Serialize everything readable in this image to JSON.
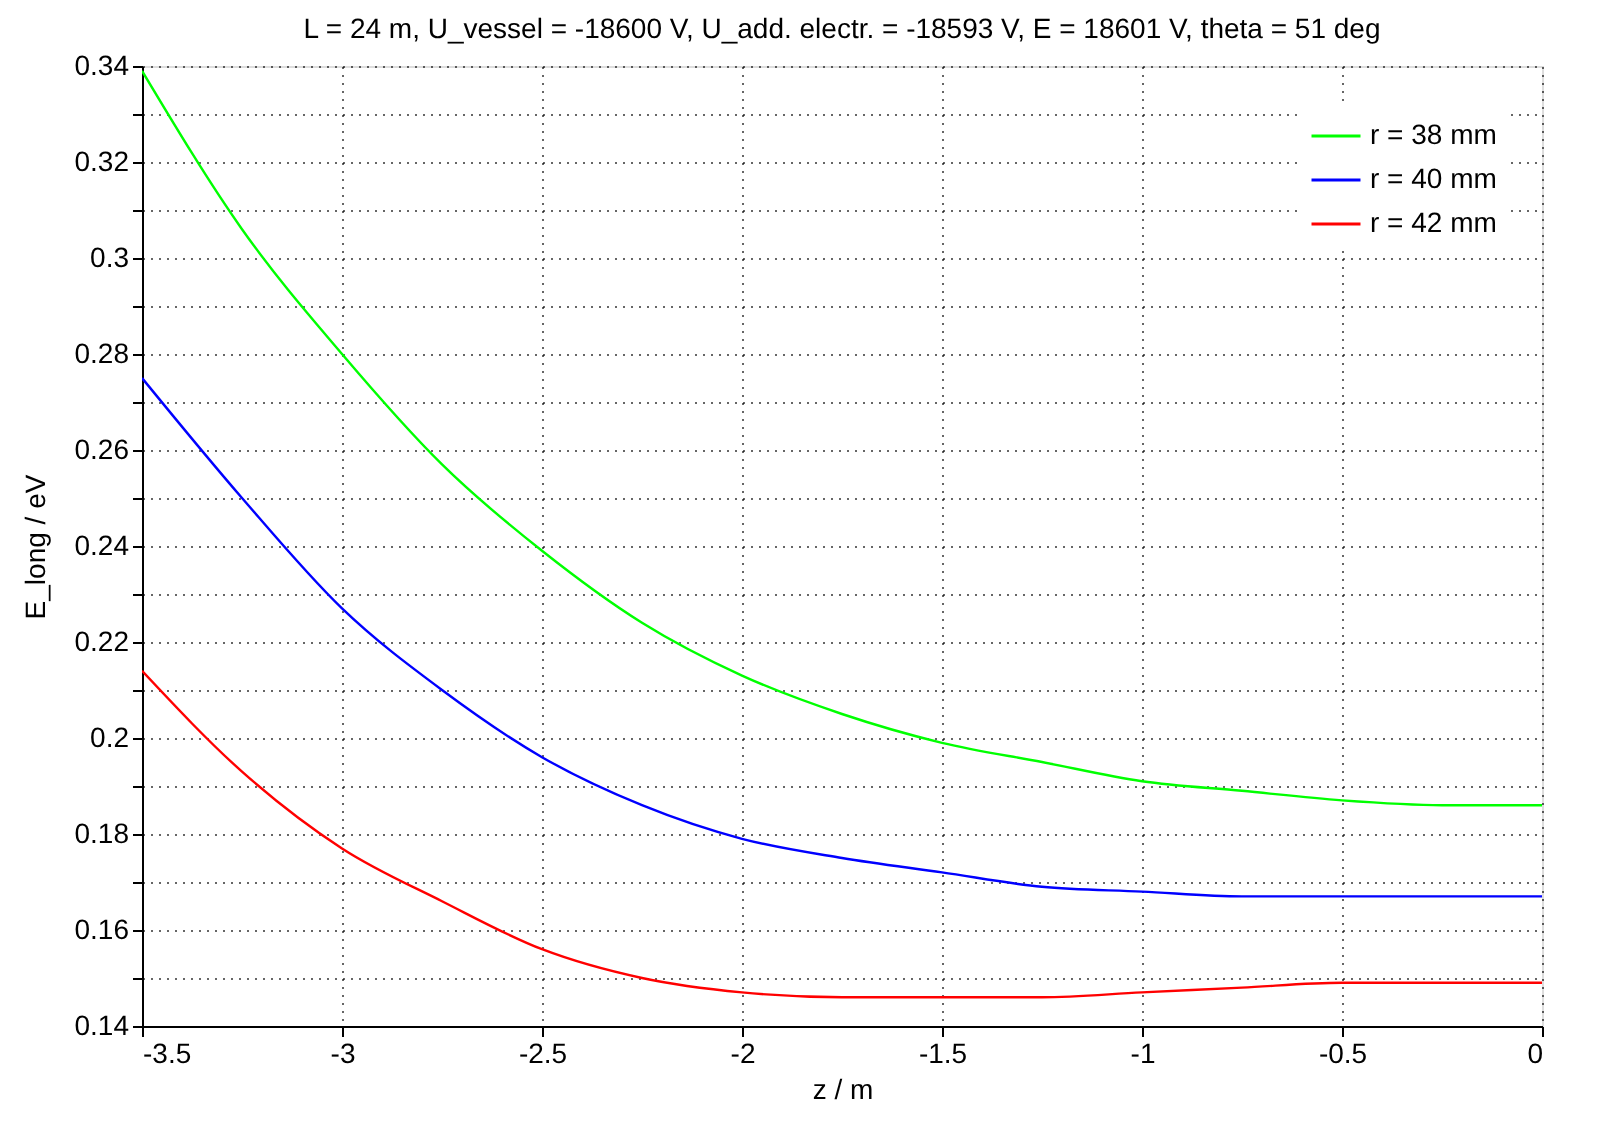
{
  "chart_data": {
    "type": "line",
    "title": "L = 24 m, U_vessel = -18600 V, U_add. electr. = -18593 V, E = 18601 V, theta = 51 deg",
    "xlabel": "z / m",
    "ylabel": "E_long / eV",
    "x": [
      -3.5,
      -3.25,
      -3.0,
      -2.75,
      -2.5,
      -2.25,
      -2.0,
      -1.75,
      -1.5,
      -1.25,
      -1.0,
      -0.75,
      -0.5,
      -0.25,
      0.0
    ],
    "series": [
      {
        "name": "r = 38 mm",
        "color": "#00ff00",
        "values": [
          0.339,
          0.306,
          0.28,
          0.257,
          0.239,
          0.224,
          0.213,
          0.205,
          0.199,
          0.195,
          0.191,
          0.189,
          0.187,
          0.186,
          0.186
        ]
      },
      {
        "name": "r = 40 mm",
        "color": "#0000ff",
        "values": [
          0.275,
          0.25,
          0.227,
          0.21,
          0.196,
          0.186,
          0.179,
          0.175,
          0.172,
          0.169,
          0.168,
          0.167,
          0.167,
          0.167,
          0.167
        ]
      },
      {
        "name": "r = 42 mm",
        "color": "#ff0000",
        "values": [
          0.214,
          0.193,
          0.177,
          0.166,
          0.156,
          0.15,
          0.147,
          0.146,
          0.146,
          0.146,
          0.147,
          0.148,
          0.149,
          0.149,
          0.149
        ]
      }
    ],
    "xlim": [
      -3.5,
      0
    ],
    "xticks": [
      -3.5,
      -3,
      -2.5,
      -2,
      -1.5,
      -1,
      -0.5,
      0
    ],
    "ylim": [
      0.14,
      0.34
    ],
    "yticks": [
      0.14,
      {
        "value": 0.15,
        "label": null
      },
      0.16,
      {
        "value": 0.17,
        "label": null
      },
      0.18,
      {
        "value": 0.19,
        "label": null
      },
      0.2,
      {
        "value": 0.21,
        "label": null
      },
      0.22,
      {
        "value": 0.23,
        "label": null
      },
      0.24,
      {
        "value": 0.25,
        "label": null
      },
      0.26,
      {
        "value": 0.27,
        "label": null
      },
      0.28,
      {
        "value": 0.29,
        "label": null
      },
      0.3,
      {
        "value": 0.31,
        "label": null
      },
      0.32,
      {
        "value": 0.33,
        "label": null
      },
      0.34
    ],
    "grid": true,
    "legend": "top right",
    "marker": "none",
    "line_style": "solid"
  }
}
